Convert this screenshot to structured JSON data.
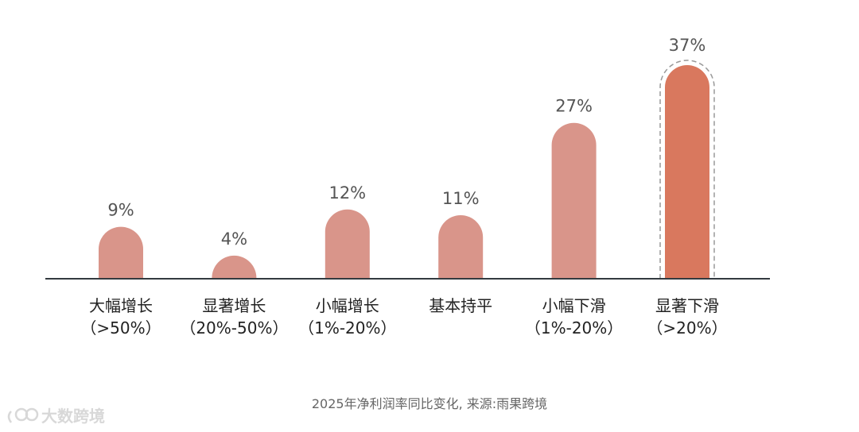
{
  "chart_data": {
    "type": "bar",
    "categories": [
      [
        "大幅增长",
        "（>50%）"
      ],
      [
        "显著增长",
        "（20%-50%）"
      ],
      [
        "小幅增长",
        "（1%-20%）"
      ],
      [
        "基本持平",
        ""
      ],
      [
        "小幅下滑",
        "（1%-20%）"
      ],
      [
        "显著下滑",
        "（>20%）"
      ]
    ],
    "values": [
      9,
      4,
      12,
      11,
      27,
      37
    ],
    "value_labels": [
      "9%",
      "4%",
      "12%",
      "11%",
      "27%",
      "37%"
    ],
    "highlight_index": 5,
    "ylim": [
      0,
      37
    ],
    "grid": false,
    "legend": "none",
    "colors": {
      "bar": "#d9958a",
      "highlight": "#d9785e",
      "axis": "#333a3f",
      "highlight_outline": "#999999"
    },
    "caption": "2025年净利润率同比变化, 来源:雨果跨境"
  },
  "watermark": {
    "text": "大数跨境",
    "icon": "brand-logo-icon"
  }
}
